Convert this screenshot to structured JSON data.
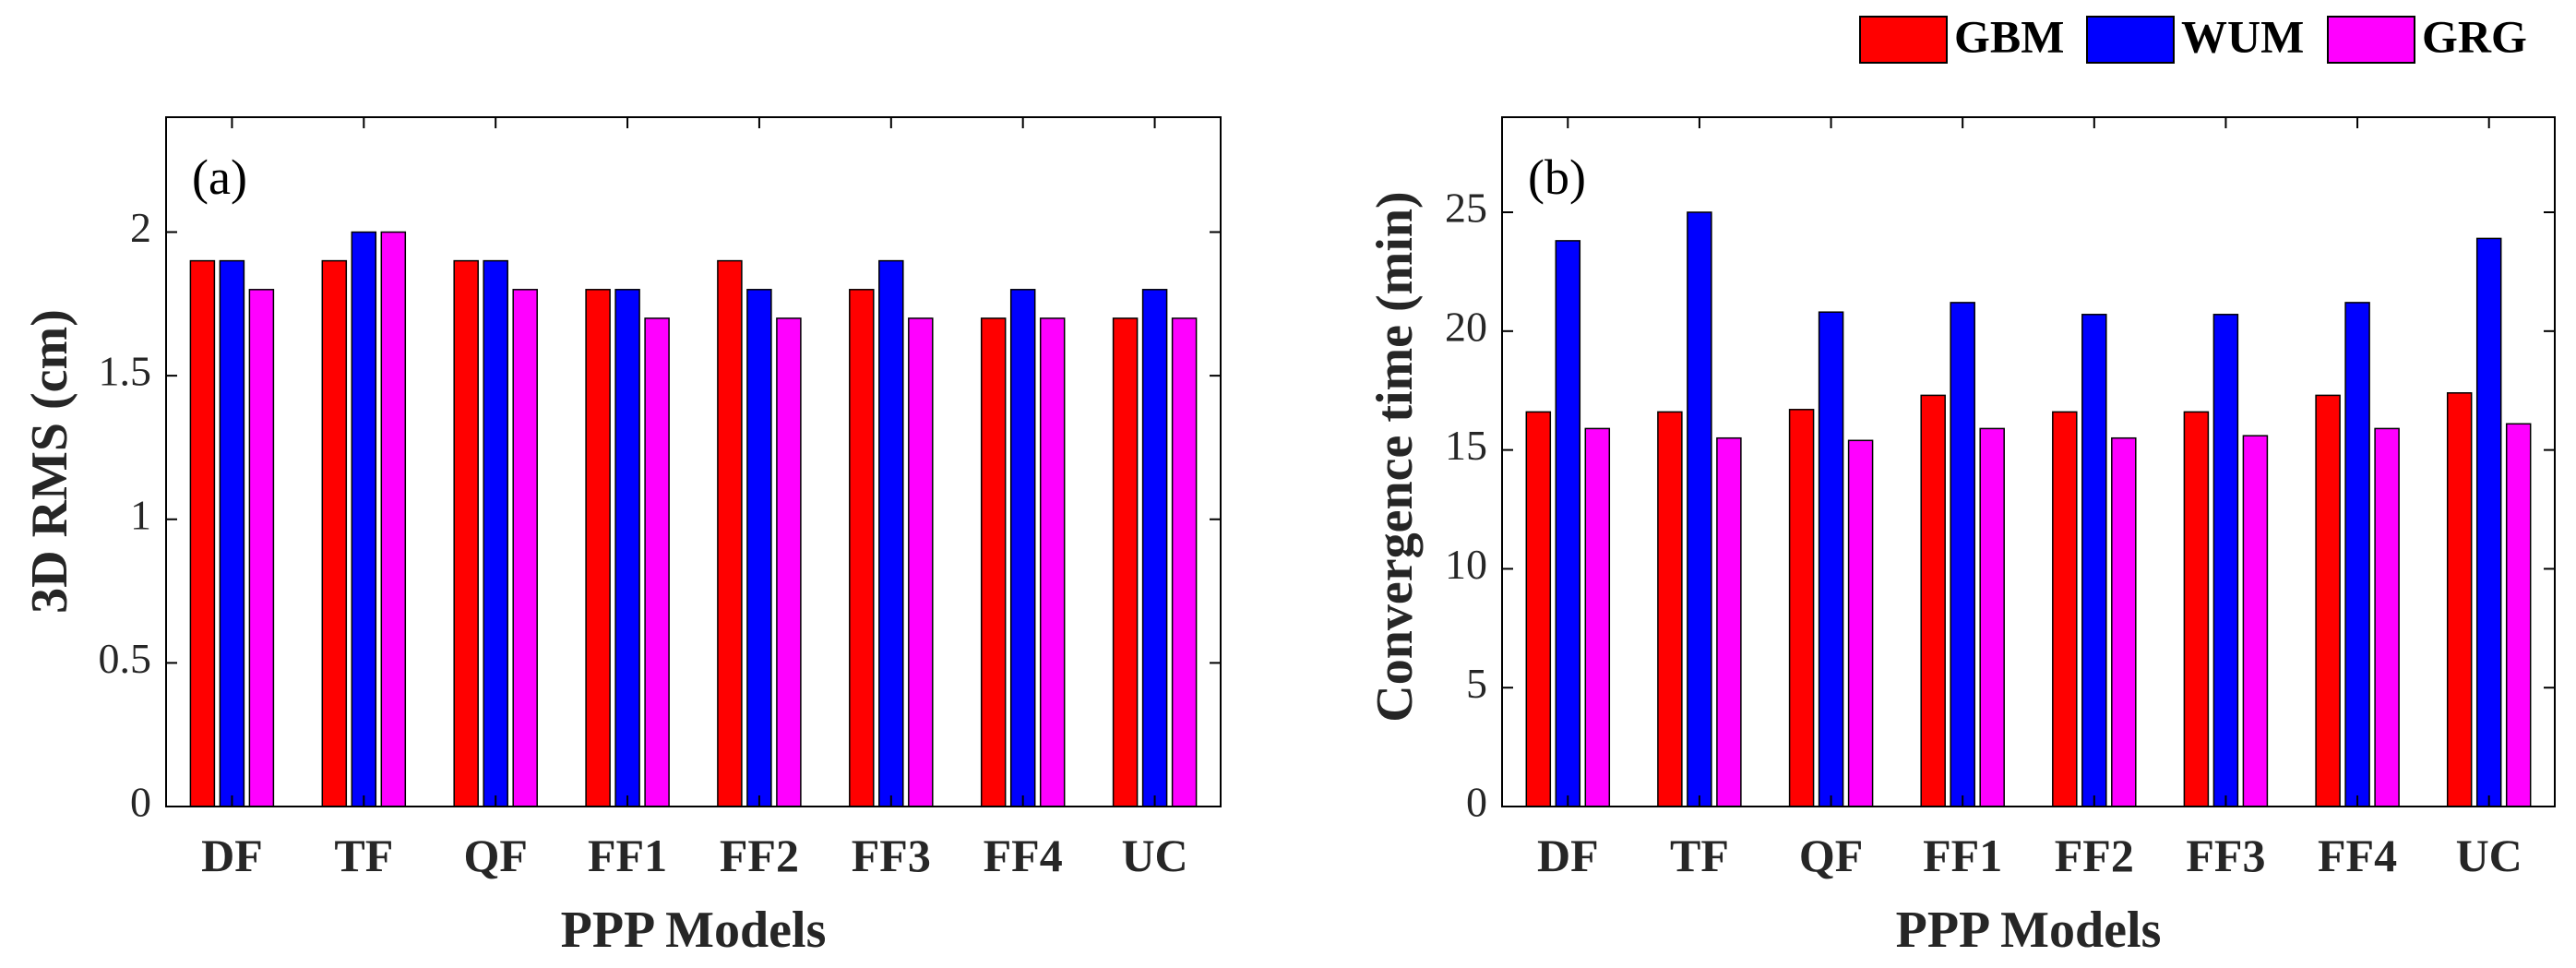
{
  "legend": [
    {
      "name": "GBM",
      "color": "#ff0000"
    },
    {
      "name": "WUM",
      "color": "#0000ff"
    },
    {
      "name": "GRG",
      "color": "#ff00ff"
    }
  ],
  "chart_data": [
    {
      "type": "bar",
      "panel_label": "(a)",
      "categories": [
        "DF",
        "TF",
        "QF",
        "FF1",
        "FF2",
        "FF3",
        "FF4",
        "UC"
      ],
      "series": [
        {
          "name": "GBM",
          "color": "#ff0000",
          "values": [
            1.9,
            1.9,
            1.9,
            1.8,
            1.9,
            1.8,
            1.7,
            1.7
          ]
        },
        {
          "name": "WUM",
          "color": "#0000ff",
          "values": [
            1.9,
            2.0,
            1.9,
            1.8,
            1.8,
            1.9,
            1.8,
            1.8
          ]
        },
        {
          "name": "GRG",
          "color": "#ff00ff",
          "values": [
            1.8,
            2.0,
            1.8,
            1.7,
            1.7,
            1.7,
            1.7,
            1.7
          ]
        }
      ],
      "xlabel": "PPP Models",
      "ylabel": "3D RMS (cm)",
      "ylim": [
        0,
        2.4
      ],
      "yticks": [
        0,
        0.5,
        1,
        1.5,
        2
      ],
      "ytick_labels": [
        "0",
        "0.5",
        "1",
        "1.5",
        "2"
      ]
    },
    {
      "type": "bar",
      "panel_label": "(b)",
      "categories": [
        "DF",
        "TF",
        "QF",
        "FF1",
        "FF2",
        "FF3",
        "FF4",
        "UC"
      ],
      "series": [
        {
          "name": "GBM",
          "color": "#ff0000",
          "values": [
            16.6,
            16.6,
            16.7,
            17.3,
            16.6,
            16.6,
            17.3,
            17.4
          ]
        },
        {
          "name": "WUM",
          "color": "#0000ff",
          "values": [
            23.8,
            25.0,
            20.8,
            21.2,
            20.7,
            20.7,
            21.2,
            23.9
          ]
        },
        {
          "name": "GRG",
          "color": "#ff00ff",
          "values": [
            15.9,
            15.5,
            15.4,
            15.9,
            15.5,
            15.6,
            15.9,
            16.1
          ]
        }
      ],
      "xlabel": "PPP Models",
      "ylabel": "Convergence time (min)",
      "ylim": [
        0,
        29
      ],
      "yticks": [
        0,
        5,
        10,
        15,
        20,
        25
      ],
      "ytick_labels": [
        "0",
        "5",
        "10",
        "15",
        "20",
        "25"
      ]
    }
  ]
}
